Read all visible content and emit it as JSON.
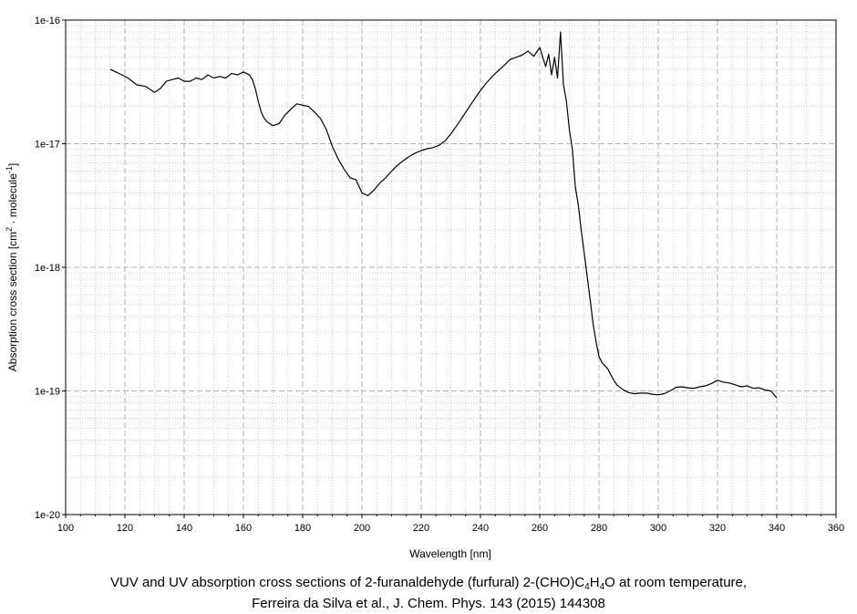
{
  "chart_data": {
    "type": "line",
    "title": "",
    "xlabel": "Wavelength [nm]",
    "ylabel_parts": [
      "Absorption cross section [cm",
      "2",
      " · molecule",
      "-1",
      "]"
    ],
    "xlim": [
      100,
      360
    ],
    "ylim": [
      1e-20,
      1e-16
    ],
    "yscale": "log",
    "grid": true,
    "x_ticks": [
      100,
      120,
      140,
      160,
      180,
      200,
      220,
      240,
      260,
      280,
      300,
      320,
      340,
      360
    ],
    "x_tick_labels": [
      "100",
      "120",
      "140",
      "160",
      "180",
      "200",
      "220",
      "240",
      "260",
      "280",
      "300",
      "320",
      "340",
      "360"
    ],
    "y_ticks": [
      1e-20,
      1e-19,
      1e-18,
      1e-17,
      1e-16
    ],
    "y_tick_labels": [
      "1e-20",
      "1e-19",
      "1e-18",
      "1e-17",
      "1e-16"
    ],
    "series": [
      {
        "color": "#000000",
        "x": [
          115,
          118,
          121,
          124,
          127,
          130,
          132,
          134,
          136,
          138,
          140,
          142,
          144,
          146,
          148,
          150,
          152,
          154,
          156,
          158,
          160,
          162,
          163,
          164,
          165,
          166,
          167,
          168,
          170,
          172,
          174,
          176,
          178,
          180,
          182,
          184,
          186,
          188,
          190,
          192,
          194,
          196,
          198,
          200,
          202,
          204,
          206,
          208,
          210,
          212,
          214,
          216,
          218,
          220,
          222,
          224,
          226,
          228,
          230,
          232,
          234,
          236,
          238,
          240,
          242,
          244,
          246,
          248,
          250,
          252,
          254,
          256,
          258,
          260,
          262,
          263,
          264,
          265,
          266,
          267,
          268,
          269,
          270,
          271,
          272,
          273,
          274,
          275,
          276,
          277,
          278,
          279,
          280,
          281,
          282,
          283,
          284,
          285,
          286,
          288,
          290,
          292,
          294,
          296,
          298,
          300,
          302,
          304,
          306,
          308,
          310,
          312,
          314,
          316,
          318,
          320,
          322,
          324,
          326,
          328,
          330,
          332,
          334,
          336,
          338,
          340
        ],
        "y": [
          4e-17,
          3.7e-17,
          3.4e-17,
          3e-17,
          2.9e-17,
          2.6e-17,
          2.8e-17,
          3.2e-17,
          3.3e-17,
          3.4e-17,
          3.2e-17,
          3.2e-17,
          3.4e-17,
          3.3e-17,
          3.6e-17,
          3.4e-17,
          3.5e-17,
          3.4e-17,
          3.7e-17,
          3.6e-17,
          3.8e-17,
          3.6e-17,
          3.3e-17,
          2.8e-17,
          2.2e-17,
          1.8e-17,
          1.6e-17,
          1.5e-17,
          1.4e-17,
          1.45e-17,
          1.7e-17,
          1.9e-17,
          2.1e-17,
          2.05e-17,
          2e-17,
          1.8e-17,
          1.6e-17,
          1.3e-17,
          9.5e-18,
          7.5e-18,
          6.2e-18,
          5.3e-18,
          5.1e-18,
          4e-18,
          3.8e-18,
          4.2e-18,
          4.8e-18,
          5.3e-18,
          6e-18,
          6.7e-18,
          7.3e-18,
          7.9e-18,
          8.4e-18,
          8.8e-18,
          9.1e-18,
          9.3e-18,
          9.7e-18,
          1.05e-17,
          1.2e-17,
          1.4e-17,
          1.65e-17,
          1.95e-17,
          2.3e-17,
          2.7e-17,
          3.1e-17,
          3.5e-17,
          3.9e-17,
          4.3e-17,
          4.8e-17,
          5e-17,
          5.2e-17,
          5.6e-17,
          5.1e-17,
          6e-17,
          4.2e-17,
          5.3e-17,
          3.6e-17,
          5e-17,
          3.4e-17,
          8e-17,
          3e-17,
          2.2e-17,
          1.3e-17,
          9e-18,
          4.5e-18,
          3.2e-18,
          2e-18,
          1.3e-18,
          8.5e-19,
          5.5e-19,
          3.5e-19,
          2.5e-19,
          1.9e-19,
          1.7e-19,
          1.6e-19,
          1.5e-19,
          1.35e-19,
          1.22e-19,
          1.12e-19,
          1.03e-19,
          9.7e-20,
          9.5e-20,
          9.6e-20,
          9.6e-20,
          9.4e-20,
          9.3e-20,
          9.5e-20,
          1e-19,
          1.07e-19,
          1.08e-19,
          1.06e-19,
          1.05e-19,
          1.08e-19,
          1.1e-19,
          1.15e-19,
          1.22e-19,
          1.18e-19,
          1.16e-19,
          1.12e-19,
          1.08e-19,
          1.1e-19,
          1.05e-19,
          1.06e-19,
          1.02e-19,
          1e-19,
          8.8e-20
        ]
      }
    ]
  },
  "caption": {
    "line1_parts": [
      "VUV and UV absorption cross sections of 2-furanaldehyde (furfural) 2-(CHO)C",
      "4",
      "H",
      "4",
      "O at room temperature,"
    ],
    "line2": "Ferreira da Silva et al., J. Chem. Phys. 143 (2015) 144308"
  }
}
